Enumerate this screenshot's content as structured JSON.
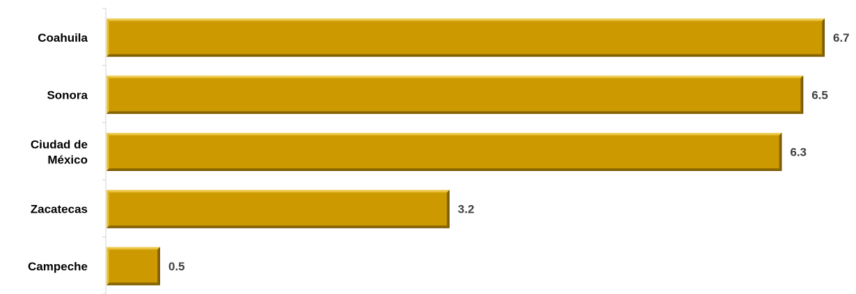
{
  "chart_data": {
    "type": "bar",
    "orientation": "horizontal",
    "categories": [
      [
        "Coahuila"
      ],
      [
        "Sonora"
      ],
      [
        "Ciudad de",
        "México"
      ],
      [
        "Zacatecas"
      ],
      [
        "Campeche"
      ]
    ],
    "values": [
      6.7,
      6.5,
      6.3,
      3.2,
      0.5
    ],
    "value_labels": [
      "6.7",
      "6.5",
      "6.3",
      "3.2",
      "0.5"
    ],
    "xlim": [
      0,
      6.7
    ],
    "title": "",
    "xlabel": "",
    "ylabel": "",
    "grid": false,
    "legend": "none",
    "colors": {
      "bar_fill": "#CC9900",
      "bar_bevel_light": "#F4D465",
      "bar_bevel_dark": "#7A5A00",
      "axis": "#D0D0D0"
    }
  }
}
